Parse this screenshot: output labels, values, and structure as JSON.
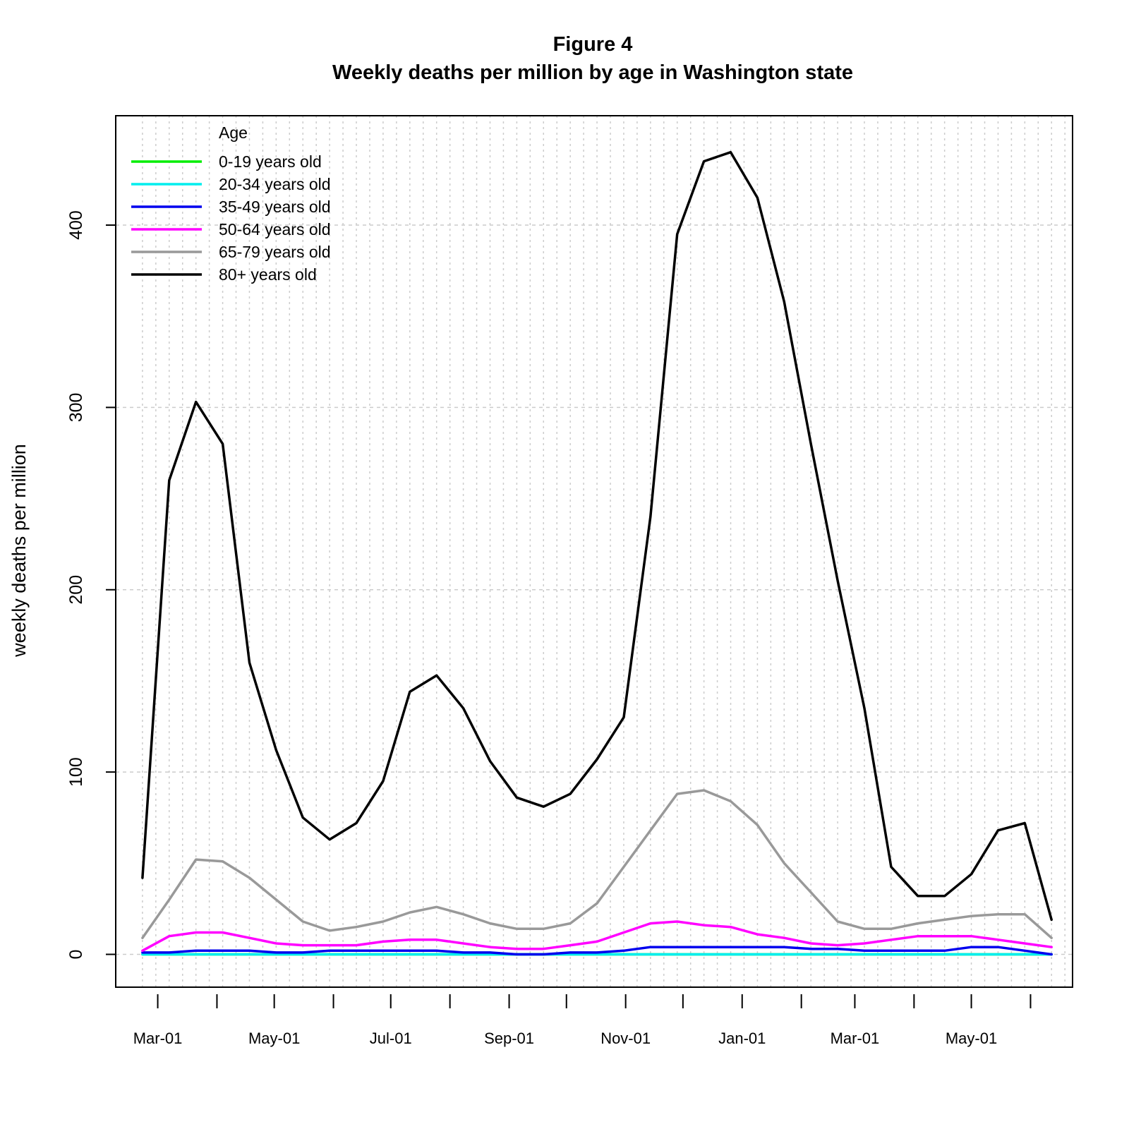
{
  "chart_data": {
    "type": "line",
    "title": "Figure 4",
    "subtitle": "Weekly deaths per million by age in Washington state",
    "xlabel": "",
    "ylabel": "weekly deaths per million",
    "ylim": [
      -18,
      460
    ],
    "xlim": [
      "2020-02-08",
      "2021-06-23"
    ],
    "grid": true,
    "x_tick_labels": [
      "Mar-01",
      "May-01",
      "Jul-01",
      "Sep-01",
      "Nov-01",
      "Jan-01",
      "Mar-01",
      "May-01"
    ],
    "x_ticks": [
      "2020-03-01",
      "2020-05-01",
      "2020-07-01",
      "2020-09-01",
      "2020-11-01",
      "2021-01-01",
      "2021-03-01",
      "2021-05-01"
    ],
    "y_ticks": [
      0,
      100,
      200,
      300,
      400
    ],
    "legend": {
      "title": "Age",
      "position": "top-left"
    },
    "x": [
      "2020-02-22",
      "2020-03-07",
      "2020-03-21",
      "2020-04-04",
      "2020-04-18",
      "2020-05-02",
      "2020-05-16",
      "2020-05-30",
      "2020-06-13",
      "2020-06-27",
      "2020-07-11",
      "2020-07-25",
      "2020-08-08",
      "2020-08-22",
      "2020-09-05",
      "2020-09-19",
      "2020-10-03",
      "2020-10-17",
      "2020-10-31",
      "2020-11-14",
      "2020-11-28",
      "2020-12-12",
      "2020-12-26",
      "2021-01-09",
      "2021-01-23",
      "2021-02-06",
      "2021-02-20",
      "2021-03-06",
      "2021-03-20",
      "2021-04-03",
      "2021-04-17",
      "2021-05-01",
      "2021-05-15",
      "2021-05-29",
      "2021-06-12"
    ],
    "series": [
      {
        "name": "0-19 years old",
        "color": "#00ee00",
        "values": [
          0,
          0,
          0,
          0,
          0,
          0,
          0,
          0,
          0,
          0,
          0,
          0,
          0,
          0,
          0,
          0,
          0,
          0,
          0,
          0,
          0,
          0,
          0,
          0,
          0,
          0,
          0,
          0,
          0,
          0,
          0,
          0,
          0,
          0,
          0
        ]
      },
      {
        "name": "20-34 years old",
        "color": "#00eeee",
        "values": [
          0,
          0,
          0,
          0,
          0,
          0,
          0,
          0,
          0,
          0,
          0,
          0,
          0,
          0,
          0,
          0,
          0,
          0,
          0,
          0,
          0,
          0,
          0,
          0,
          0,
          0,
          0,
          0,
          0,
          0,
          0,
          0,
          0,
          0,
          0
        ]
      },
      {
        "name": "35-49 years old",
        "color": "#0000ee",
        "values": [
          1,
          1,
          2,
          2,
          2,
          1,
          1,
          2,
          2,
          2,
          2,
          2,
          1,
          1,
          0,
          0,
          1,
          1,
          2,
          4,
          4,
          4,
          4,
          4,
          4,
          3,
          3,
          2,
          2,
          2,
          2,
          4,
          4,
          2,
          0
        ]
      },
      {
        "name": "50-64 years old",
        "color": "#ff00ff",
        "values": [
          2,
          10,
          12,
          12,
          9,
          6,
          5,
          5,
          5,
          7,
          8,
          8,
          6,
          4,
          3,
          3,
          5,
          7,
          12,
          17,
          18,
          16,
          15,
          11,
          9,
          6,
          5,
          6,
          8,
          10,
          10,
          10,
          8,
          6,
          4
        ]
      },
      {
        "name": "65-79 years old",
        "color": "#999999",
        "values": [
          9,
          30,
          52,
          51,
          42,
          30,
          18,
          13,
          15,
          18,
          23,
          26,
          22,
          17,
          14,
          14,
          17,
          28,
          48,
          68,
          88,
          90,
          84,
          71,
          50,
          34,
          18,
          14,
          14,
          17,
          19,
          21,
          22,
          22,
          9
        ]
      },
      {
        "name": "80+ years old",
        "color": "#000000",
        "values": [
          42,
          260,
          303,
          280,
          160,
          112,
          75,
          63,
          72,
          95,
          144,
          153,
          135,
          106,
          86,
          81,
          88,
          107,
          130,
          240,
          395,
          435,
          440,
          415,
          358,
          280,
          205,
          135,
          48,
          32,
          32,
          44,
          68,
          72,
          19
        ]
      }
    ]
  }
}
